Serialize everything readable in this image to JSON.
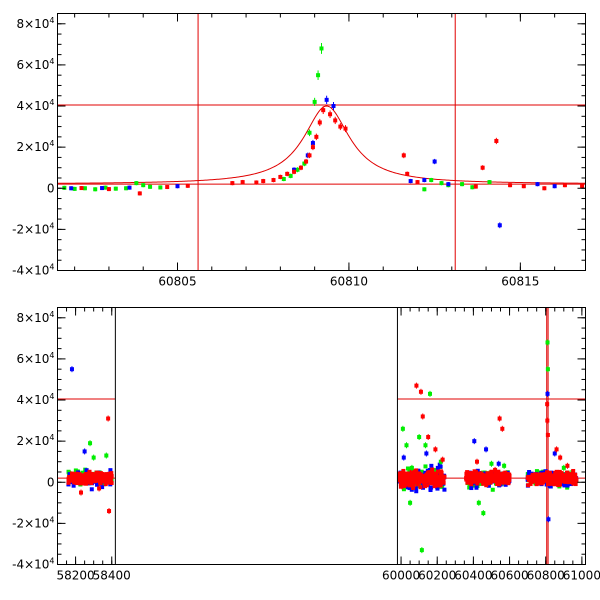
{
  "colors": {
    "model": "#e00000",
    "red": "#ff0000",
    "green": "#00ee00",
    "blue": "#0000ff",
    "axis": "#000000"
  },
  "chart_data": [
    {
      "type": "scatter",
      "title": "",
      "xlabel": "",
      "ylabel": "",
      "xlim": [
        60801.5,
        60816.9
      ],
      "ylim": [
        -40000,
        85000
      ],
      "x_ticks": [
        60805,
        60810,
        60815
      ],
      "x_tick_labels": [
        "60805",
        "60810",
        "60815"
      ],
      "y_ticks": [
        -40000,
        -20000,
        0,
        20000,
        40000,
        60000,
        80000
      ],
      "y_tick_labels": [
        {
          "sign": "-",
          "mantissa": "4",
          "exp": "4"
        },
        {
          "sign": "-",
          "mantissa": "2",
          "exp": "4"
        },
        {
          "sign": "",
          "mantissa": "0",
          "exp": ""
        },
        {
          "sign": "",
          "mantissa": "2",
          "exp": "4"
        },
        {
          "sign": "",
          "mantissa": "4",
          "exp": "4"
        },
        {
          "sign": "",
          "mantissa": "6",
          "exp": "4"
        },
        {
          "sign": "",
          "mantissa": "8",
          "exp": "4"
        }
      ],
      "hlines": [
        40500,
        2000
      ],
      "vlines": [
        60805.6,
        60813.1
      ],
      "model": {
        "baseline": 2000,
        "peak_x": 60809.35,
        "peak_y": 40000,
        "sigma": 0.82
      },
      "series": [
        {
          "name": "green",
          "color": "#00ee00",
          "points": [
            [
              60801.7,
              200
            ],
            [
              60802.0,
              -300
            ],
            [
              60802.3,
              0
            ],
            [
              60802.6,
              -500
            ],
            [
              60802.9,
              300
            ],
            [
              60803.2,
              -200
            ],
            [
              60803.5,
              0
            ],
            [
              60803.8,
              2500
            ],
            [
              60804.0,
              1500
            ],
            [
              60804.2,
              700
            ],
            [
              60804.5,
              400
            ],
            [
              60808.1,
              4500
            ],
            [
              60808.3,
              6000
            ],
            [
              60808.5,
              9000
            ],
            [
              60808.7,
              12000
            ],
            [
              60808.85,
              27000
            ],
            [
              60809.0,
              42000
            ],
            [
              60809.1,
              55000
            ],
            [
              60809.2,
              68000
            ],
            [
              60812.2,
              -500
            ],
            [
              60812.4,
              4000
            ],
            [
              60812.7,
              2500
            ],
            [
              60812.9,
              1500
            ],
            [
              60813.3,
              2000
            ],
            [
              60813.6,
              500
            ],
            [
              60814.1,
              3000
            ]
          ]
        },
        {
          "name": "blue",
          "color": "#0000ff",
          "points": [
            [
              60801.9,
              0
            ],
            [
              60802.8,
              100
            ],
            [
              60803.6,
              300
            ],
            [
              60805.0,
              1000
            ],
            [
              60808.4,
              9000
            ],
            [
              60808.8,
              16000
            ],
            [
              60808.95,
              22000
            ],
            [
              60809.35,
              43000
            ],
            [
              60809.55,
              40000
            ],
            [
              60811.8,
              3500
            ],
            [
              60812.2,
              4000
            ],
            [
              60812.5,
              13000
            ],
            [
              60812.9,
              2000
            ],
            [
              60814.4,
              -18000
            ],
            [
              60815.5,
              2000
            ],
            [
              60816.0,
              1000
            ]
          ]
        },
        {
          "name": "red",
          "color": "#ff0000",
          "points": [
            [
              60802.2,
              100
            ],
            [
              60803.0,
              -400
            ],
            [
              60803.9,
              -2500
            ],
            [
              60804.7,
              600
            ],
            [
              60805.3,
              1200
            ],
            [
              60806.6,
              2500
            ],
            [
              60806.9,
              3000
            ],
            [
              60807.3,
              2800
            ],
            [
              60807.5,
              3500
            ],
            [
              60807.8,
              4000
            ],
            [
              60808.0,
              5500
            ],
            [
              60808.2,
              7000
            ],
            [
              60808.4,
              8000
            ],
            [
              60808.6,
              10000
            ],
            [
              60808.75,
              13000
            ],
            [
              60808.85,
              16000
            ],
            [
              60808.95,
              20000
            ],
            [
              60809.05,
              25000
            ],
            [
              60809.15,
              32000
            ],
            [
              60809.25,
              38000
            ],
            [
              60809.45,
              36000
            ],
            [
              60809.6,
              33000
            ],
            [
              60809.75,
              30000
            ],
            [
              60809.9,
              29000
            ],
            [
              60811.6,
              16000
            ],
            [
              60811.7,
              7000
            ],
            [
              60812.0,
              3000
            ],
            [
              60813.7,
              800
            ],
            [
              60813.9,
              10000
            ],
            [
              60814.3,
              23000
            ],
            [
              60814.7,
              1500
            ],
            [
              60815.1,
              1000
            ],
            [
              60815.7,
              0
            ],
            [
              60816.3,
              1500
            ],
            [
              60816.8,
              1000
            ]
          ]
        }
      ]
    },
    {
      "type": "scatter",
      "title": "",
      "xlabel": "",
      "ylabel": "",
      "xlim": [
        58100,
        61020
      ],
      "ylim": [
        -40000,
        85000
      ],
      "gap": [
        58420,
        59980
      ],
      "x_ticks": [
        58200,
        58400,
        60000,
        60200,
        60400,
        60600,
        60800,
        61000
      ],
      "x_tick_labels": [
        "58200",
        "58400",
        "60000",
        "60200",
        "60400",
        "60600",
        "60800",
        "61000"
      ],
      "y_ticks": [
        -40000,
        -20000,
        0,
        20000,
        40000,
        60000,
        80000
      ],
      "y_tick_labels": [
        {
          "sign": "-",
          "mantissa": "4",
          "exp": "4"
        },
        {
          "sign": "-",
          "mantissa": "2",
          "exp": "4"
        },
        {
          "sign": "",
          "mantissa": "0",
          "exp": ""
        },
        {
          "sign": "",
          "mantissa": "2",
          "exp": "4"
        },
        {
          "sign": "",
          "mantissa": "4",
          "exp": "4"
        },
        {
          "sign": "",
          "mantissa": "6",
          "exp": "4"
        },
        {
          "sign": "",
          "mantissa": "8",
          "exp": "4"
        }
      ],
      "hlines": [
        40500,
        2000
      ],
      "vlines": [
        60805.6,
        60813.1
      ],
      "clusters": [
        {
          "x0": 58160,
          "x1": 58400,
          "spread": 2500
        },
        {
          "x0": 59990,
          "x1": 60240,
          "spread": 3500
        },
        {
          "x0": 60360,
          "x1": 60600,
          "spread": 2500
        },
        {
          "x0": 60700,
          "x1": 60970,
          "spread": 2500
        }
      ],
      "outliers": [
        {
          "color": "#0000ff",
          "points": [
            [
              58180,
              55000
            ],
            [
              58250,
              15000
            ],
            [
              60015,
              12000
            ],
            [
              60140,
              14000
            ],
            [
              60405,
              20000
            ],
            [
              60470,
              16000
            ],
            [
              60540,
              9000
            ],
            [
              60810,
              43000
            ],
            [
              60815,
              -18000
            ],
            [
              60850,
              14000
            ]
          ]
        },
        {
          "color": "#00ee00",
          "points": [
            [
              58280,
              19000
            ],
            [
              58300,
              12000
            ],
            [
              58370,
              13000
            ],
            [
              60010,
              26000
            ],
            [
              60030,
              18000
            ],
            [
              60050,
              -10000
            ],
            [
              60060,
              7000
            ],
            [
              60100,
              22000
            ],
            [
              60115,
              -33000
            ],
            [
              60135,
              18000
            ],
            [
              60160,
              43000
            ],
            [
              60220,
              10000
            ],
            [
              60430,
              -10000
            ],
            [
              60455,
              -15000
            ],
            [
              60500,
              9000
            ],
            [
              60570,
              8000
            ],
            [
              60810,
              68000
            ],
            [
              60812,
              55000
            ],
            [
              60900,
              7000
            ]
          ]
        },
        {
          "color": "#ff0000",
          "points": [
            [
              58230,
              -5000
            ],
            [
              58330,
              -3000
            ],
            [
              58380,
              31000
            ],
            [
              58385,
              -14000
            ],
            [
              60005,
              -2000
            ],
            [
              60085,
              47000
            ],
            [
              60110,
              44000
            ],
            [
              60120,
              32000
            ],
            [
              60150,
              22000
            ],
            [
              60190,
              16000
            ],
            [
              60230,
              11000
            ],
            [
              60420,
              10000
            ],
            [
              60520,
              6000
            ],
            [
              60545,
              31000
            ],
            [
              60560,
              26000
            ],
            [
              60808,
              38000
            ],
            [
              60809,
              30000
            ],
            [
              60812,
              23000
            ],
            [
              60860,
              16000
            ],
            [
              60880,
              12000
            ],
            [
              60920,
              8000
            ],
            [
              60950,
              4000
            ]
          ]
        }
      ]
    }
  ]
}
